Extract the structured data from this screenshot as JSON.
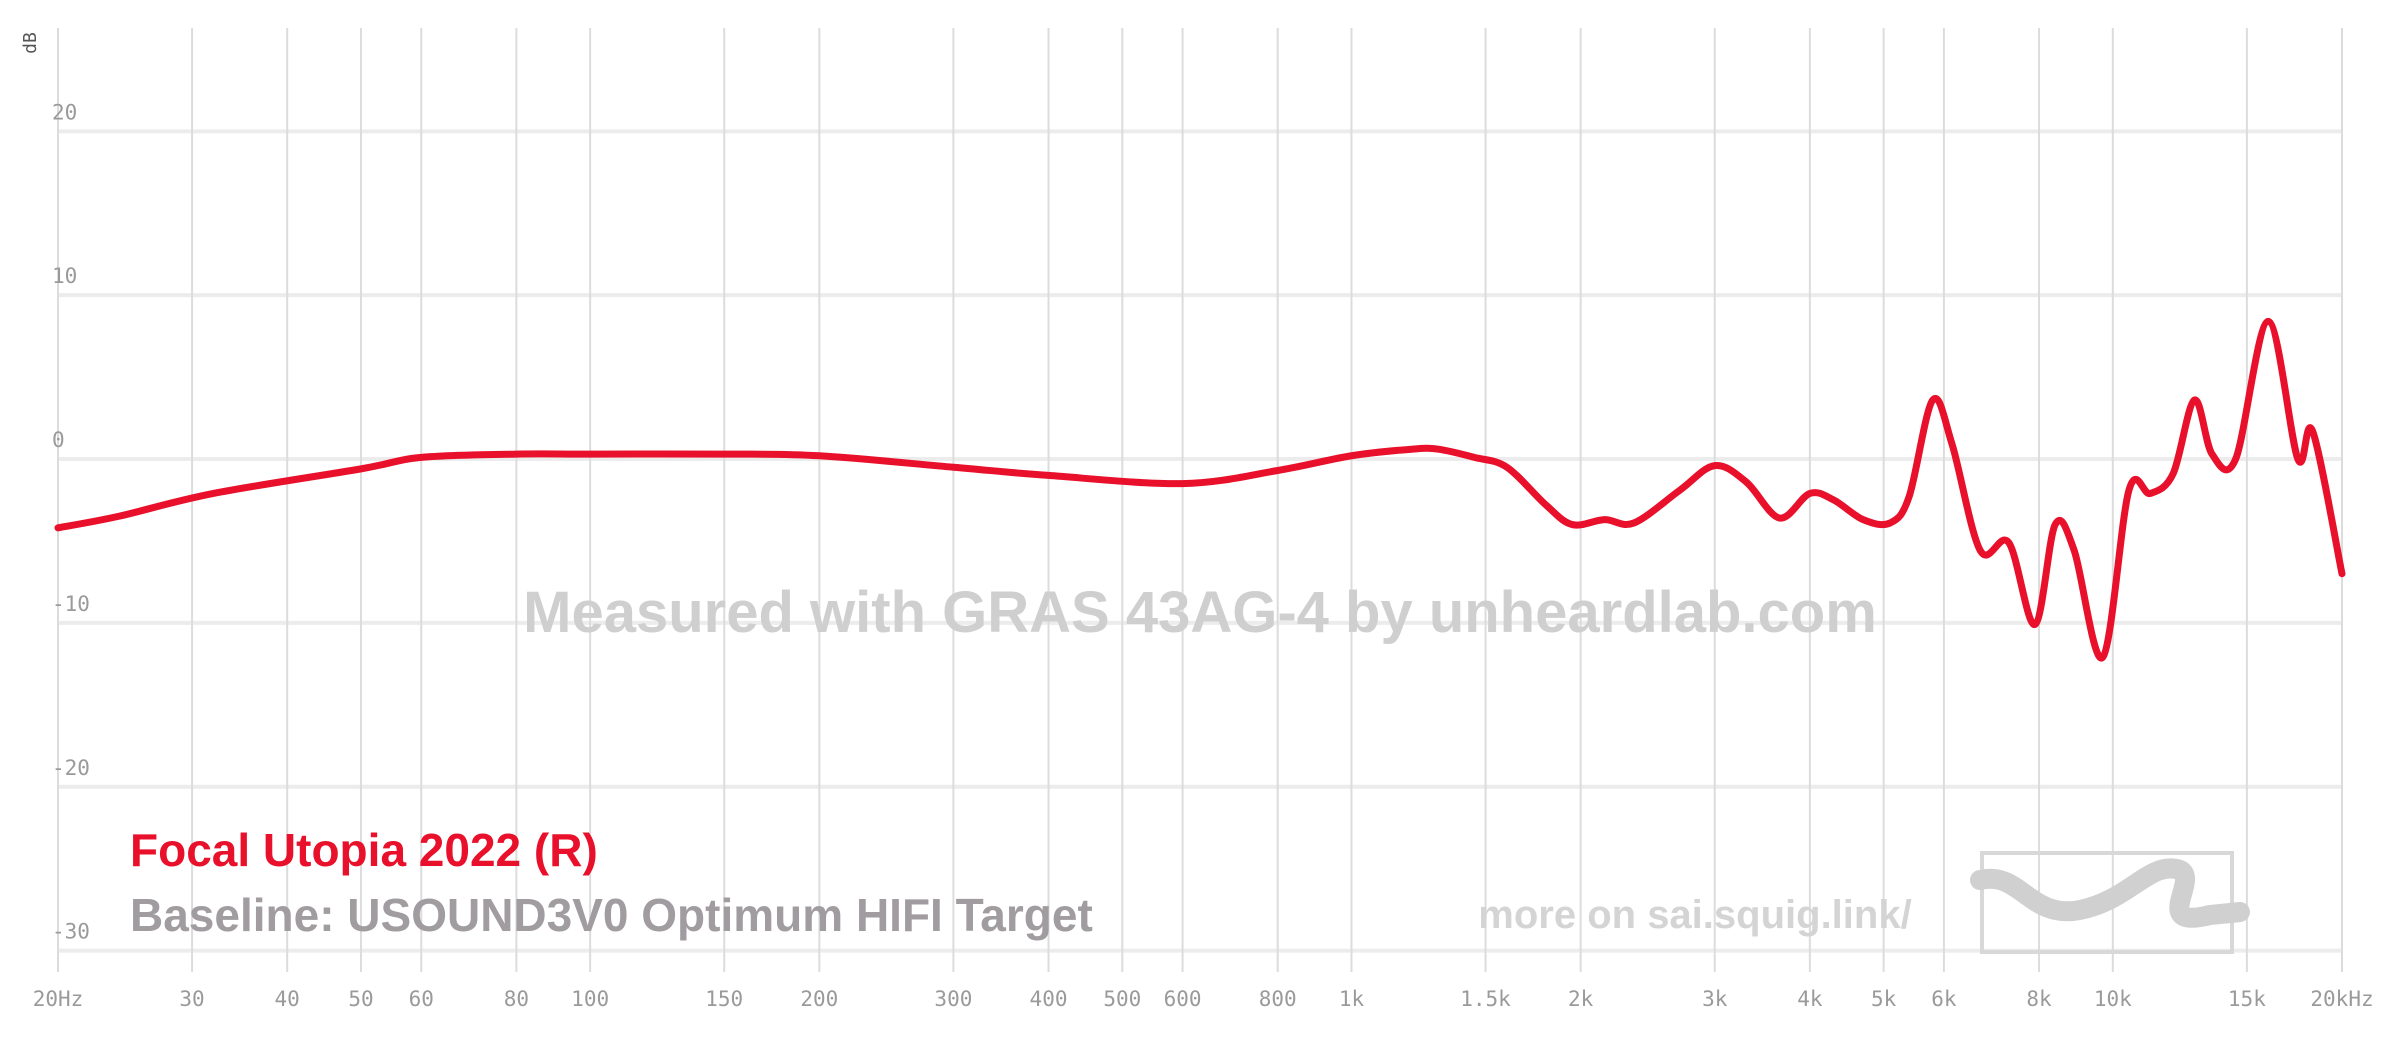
{
  "chart_data": {
    "type": "line",
    "y_label": "dB",
    "x_scale": "log",
    "xlim": [
      20,
      20000
    ],
    "ylim": [
      -31,
      26
    ],
    "yticks": [
      -30,
      -20,
      -10,
      0,
      10,
      20
    ],
    "xticks": [
      {
        "value": 20,
        "label": "20Hz"
      },
      30,
      40,
      50,
      60,
      80,
      100,
      150,
      200,
      300,
      400,
      500,
      600,
      800,
      {
        "value": 1000,
        "label": "1k"
      },
      {
        "value": 1500,
        "label": "1.5k"
      },
      {
        "value": 2000,
        "label": "2k"
      },
      {
        "value": 3000,
        "label": "3k"
      },
      {
        "value": 4000,
        "label": "4k"
      },
      {
        "value": 5000,
        "label": "5k"
      },
      {
        "value": 6000,
        "label": "6k"
      },
      {
        "value": 8000,
        "label": "8k"
      },
      {
        "value": 10000,
        "label": "10k"
      },
      {
        "value": 15000,
        "label": "15k"
      },
      {
        "value": 20000,
        "label": "20kHz"
      }
    ],
    "grid": true,
    "x": [
      20,
      24,
      32,
      50,
      60,
      80,
      100,
      150,
      200,
      300,
      400,
      600,
      800,
      1000,
      1200,
      1300,
      1450,
      1600,
      1800,
      1950,
      2150,
      2350,
      2700,
      3000,
      3300,
      3650,
      4000,
      4300,
      4700,
      5100,
      5400,
      5800,
      6150,
      6700,
      7300,
      7900,
      8400,
      8900,
      9700,
      10500,
      11200,
      12000,
      12800,
      13500,
      14500,
      16000,
      17500,
      18300,
      20000
    ],
    "series": [
      {
        "name": "Focal Utopia 2022 (R)",
        "color": "#e8102a",
        "values": [
          -4.2,
          -3.5,
          -2.1,
          -0.6,
          0.1,
          0.3,
          0.3,
          0.3,
          0.2,
          -0.5,
          -1.0,
          -1.5,
          -0.7,
          0.2,
          0.6,
          0.6,
          0.1,
          -0.5,
          -2.8,
          -4.0,
          -3.7,
          -3.9,
          -1.9,
          -0.4,
          -1.4,
          -3.6,
          -2.1,
          -2.5,
          -3.7,
          -3.9,
          -2.3,
          3.6,
          0.9,
          -5.6,
          -5.1,
          -10.1,
          -4.0,
          -5.6,
          -12.1,
          -1.9,
          -2.1,
          -0.9,
          3.6,
          0.3,
          0,
          8.4,
          0,
          1.7,
          -7.0
        ]
      }
    ],
    "baseline": "Baseline: USOUND3V0 Optimum HIFI Target",
    "watermark": "Measured with GRAS 43AG-4 by unheardlab.com",
    "link_text": "more on sai.squig.link/"
  }
}
